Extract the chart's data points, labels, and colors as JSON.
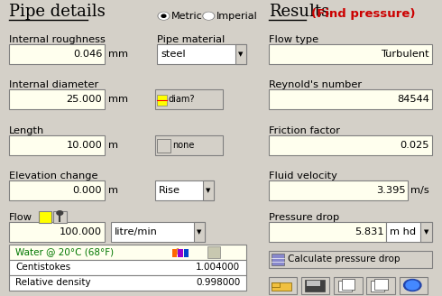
{
  "bg_color": "#d4d0c8",
  "title_left": "Pipe details",
  "title_right": "Results",
  "title_right2": "(Find pressure)",
  "radio_metric": "Metric",
  "radio_imperial": "Imperial",
  "fluid_label": "Water @ 20°C (68°F)",
  "centistokes_value": "1.004000",
  "rel_density_value": "0.998000",
  "calc_button": "Calculate pressure drop",
  "input_bg": "#ffffee",
  "white_bg": "#ffffff",
  "border_color": "#808080",
  "text_color": "#000000",
  "find_pressure_color": "#cc0000",
  "label_fontsize": 8.2,
  "value_fontsize": 8.2,
  "title_fontsize": 13
}
